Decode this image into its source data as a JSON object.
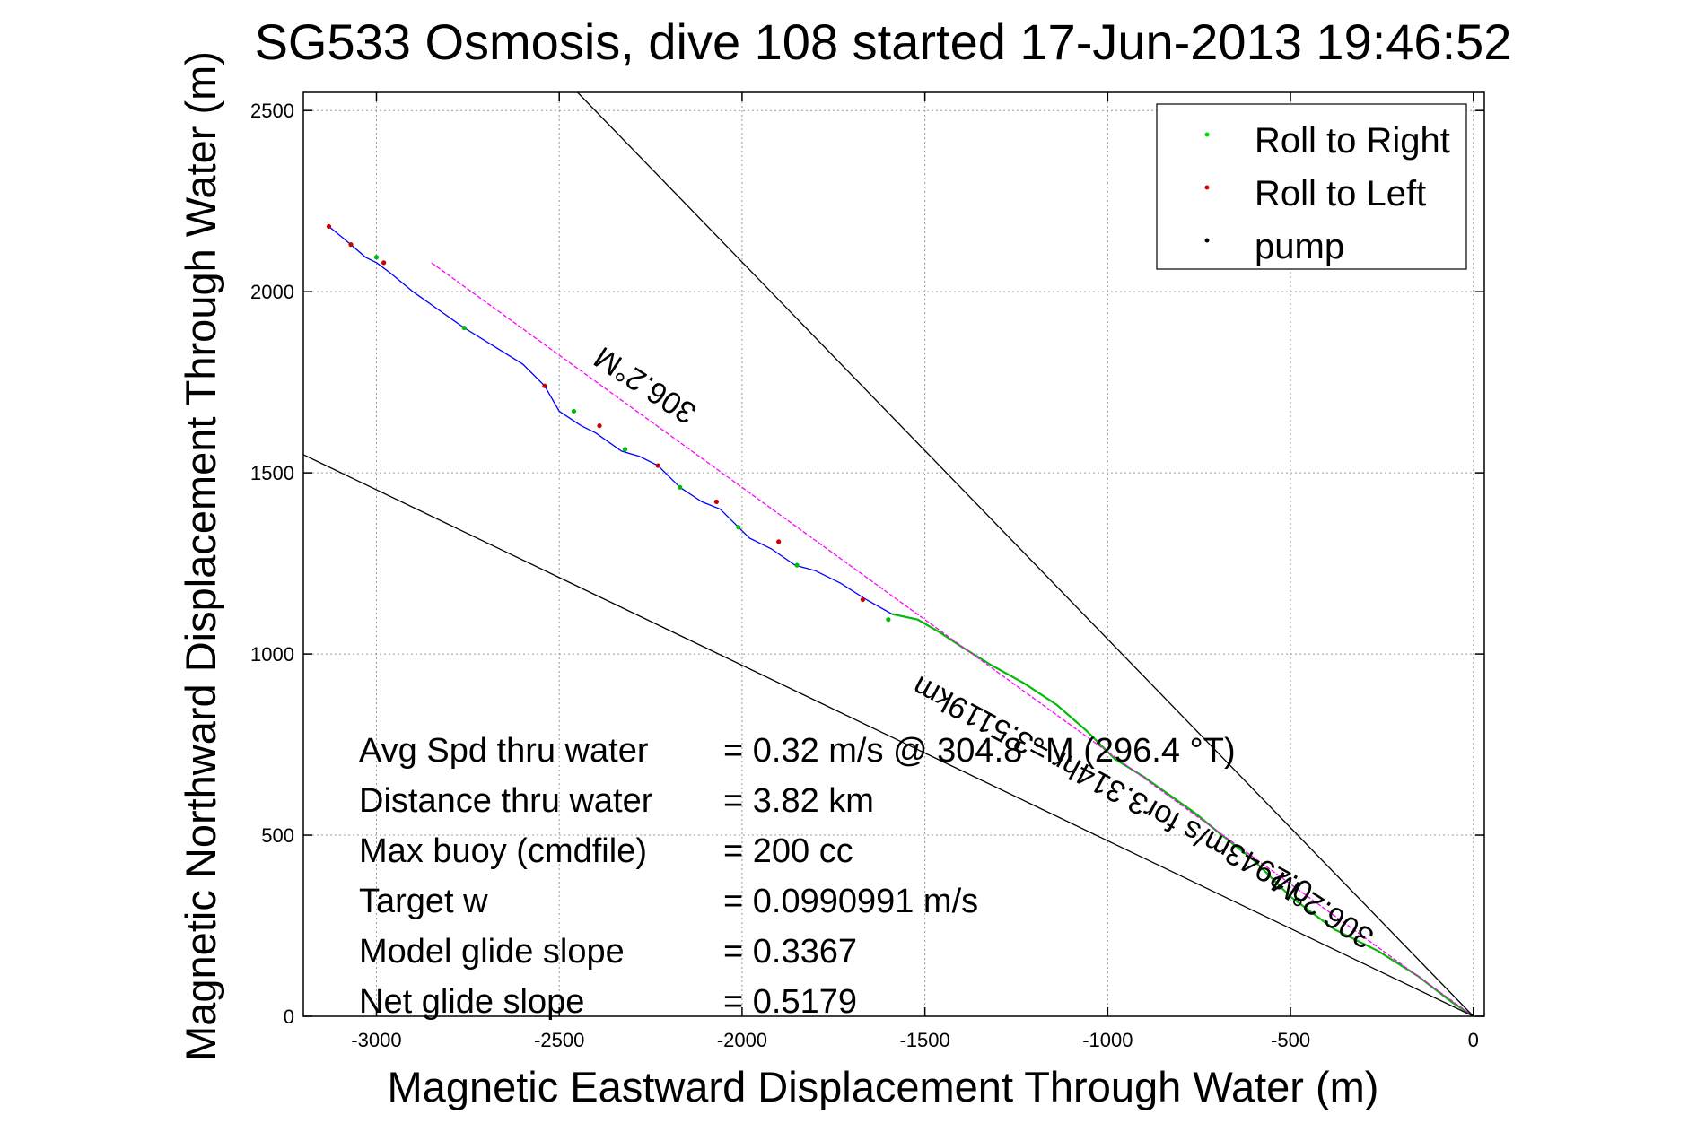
{
  "chart_data": {
    "type": "line",
    "title": "SG533 Osmosis, dive 108 started 17-Jun-2013 19:46:52",
    "xlabel": "Magnetic Eastward Displacement Through Water (m)",
    "ylabel": "Magnetic Northward Displacement Through Water (m)",
    "xlim": [
      -3200,
      30
    ],
    "ylim": [
      0,
      2550
    ],
    "xticks": [
      -3000,
      -2500,
      -2000,
      -1500,
      -1000,
      -500,
      0
    ],
    "yticks": [
      0,
      500,
      1000,
      1500,
      2000,
      2500
    ],
    "grid": true,
    "legend_position": "top-right",
    "legend": [
      {
        "label": "Roll to Right",
        "color": "#00dd00"
      },
      {
        "label": "Roll to Left",
        "color": "#dd0000"
      },
      {
        "label": "pump",
        "color": "#000000"
      }
    ],
    "series": [
      {
        "name": "track",
        "color": "#0000ff",
        "x": [
          0,
          -60,
          -150,
          -260,
          -380,
          -500,
          -600,
          -700,
          -760,
          -830,
          -900,
          -980,
          -1060,
          -1140,
          -1230,
          -1320,
          -1400,
          -1460,
          -1520,
          -1590,
          -1660,
          -1730,
          -1800,
          -1855,
          -1920,
          -1980,
          -2010,
          -2060,
          -2110,
          -2170,
          -2230,
          -2280,
          -2330,
          -2400,
          -2440,
          -2500,
          -2540,
          -2600,
          -2680,
          -2760,
          -2830,
          -2900,
          -2960,
          -3000,
          -3030,
          -3070,
          -3130
        ],
        "y": [
          0,
          40,
          110,
          180,
          240,
          330,
          430,
          510,
          560,
          610,
          660,
          710,
          790,
          860,
          920,
          970,
          1020,
          1060,
          1095,
          1110,
          1150,
          1195,
          1230,
          1245,
          1290,
          1320,
          1350,
          1400,
          1420,
          1460,
          1520,
          1545,
          1560,
          1610,
          1630,
          1670,
          1740,
          1800,
          1850,
          1900,
          1950,
          2000,
          2050,
          2080,
          2095,
          2130,
          2180
        ]
      },
      {
        "name": "green overlay",
        "color": "#00bb00",
        "x": [
          0,
          -60,
          -150,
          -260,
          -380,
          -500,
          -600,
          -700,
          -760,
          -830,
          -900,
          -980,
          -1060,
          -1140,
          -1230,
          -1320,
          -1400,
          -1460,
          -1520,
          -1590
        ],
        "y": [
          0,
          40,
          110,
          180,
          240,
          330,
          430,
          510,
          560,
          610,
          660,
          710,
          790,
          860,
          920,
          970,
          1020,
          1060,
          1095,
          1110
        ]
      },
      {
        "name": "heading line",
        "color": "#ff00ff",
        "dashed": true,
        "x": [
          0,
          -2850
        ],
        "y": [
          0,
          2080
        ]
      },
      {
        "name": "bound 1",
        "color": "#000000",
        "x": [
          0,
          -2450
        ],
        "y": [
          0,
          2550
        ]
      },
      {
        "name": "bound 2",
        "color": "#000000",
        "x": [
          0,
          -3200
        ],
        "y": [
          0,
          1550
        ]
      }
    ],
    "roll_right_points": {
      "x": [
        -3000,
        -2760,
        -2460,
        -2320,
        -2170,
        -2010,
        -1850,
        -1600
      ],
      "y": [
        2095,
        1900,
        1670,
        1565,
        1460,
        1350,
        1245,
        1095
      ]
    },
    "roll_left_points": {
      "x": [
        -3130,
        -3070,
        -2980,
        -2540,
        -2390,
        -2230,
        -2070,
        -1900,
        -1670
      ],
      "y": [
        2180,
        2130,
        2080,
        1740,
        1630,
        1520,
        1420,
        1310,
        1150
      ]
    },
    "pump_points": {
      "x": [],
      "y": []
    },
    "annotations": {
      "heading_upper": "306.2°M",
      "heading_lower": "306.2°M",
      "distance_label": "0.2943m/s for3.314hr =3.5119km",
      "stats_labels": [
        "Avg Spd thru water",
        "Distance thru water",
        "Max buoy (cmdfile)",
        "Target w",
        "Model glide slope",
        "Net glide slope"
      ],
      "stats_values": [
        "=  0.32 m/s @ 304.8 °M (296.4 °T)",
        "=  3.82 km",
        "= 200 cc",
        "= 0.0990991 m/s",
        "= 0.3367",
        "= 0.5179"
      ]
    }
  }
}
